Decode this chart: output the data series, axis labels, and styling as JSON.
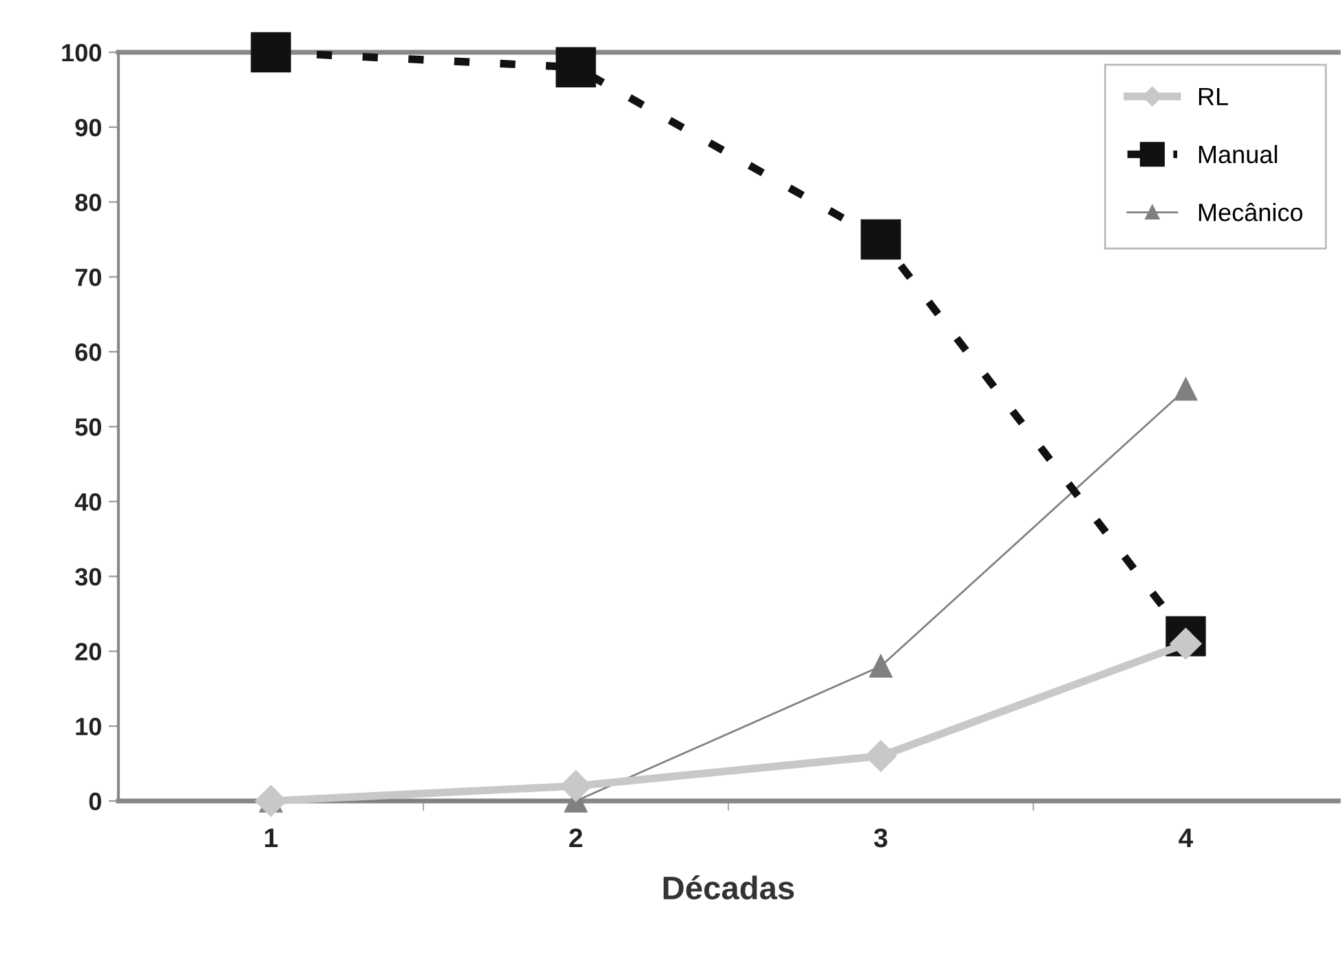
{
  "chart_data": {
    "type": "line",
    "xlabel": "Décadas",
    "categories": [
      "1",
      "2",
      "3",
      "4"
    ],
    "series": [
      {
        "name": "RL",
        "color": "#c8c8c8",
        "values": [
          0,
          2,
          6,
          21
        ],
        "marker": "diamond",
        "line_style": "solid"
      },
      {
        "name": "Manual",
        "color": "#111111",
        "values": [
          100,
          98,
          75,
          22
        ],
        "marker": "square",
        "line_style": "dashed"
      },
      {
        "name": "Mecânico",
        "color": "#808080",
        "values": [
          0,
          0,
          18,
          55
        ],
        "marker": "triangle",
        "line_style": "solid"
      }
    ],
    "ylim": [
      0,
      100
    ],
    "yticks": [
      0,
      10,
      20,
      30,
      40,
      50,
      60,
      70,
      80,
      90,
      100
    ],
    "grid": false,
    "legend": "top right"
  }
}
